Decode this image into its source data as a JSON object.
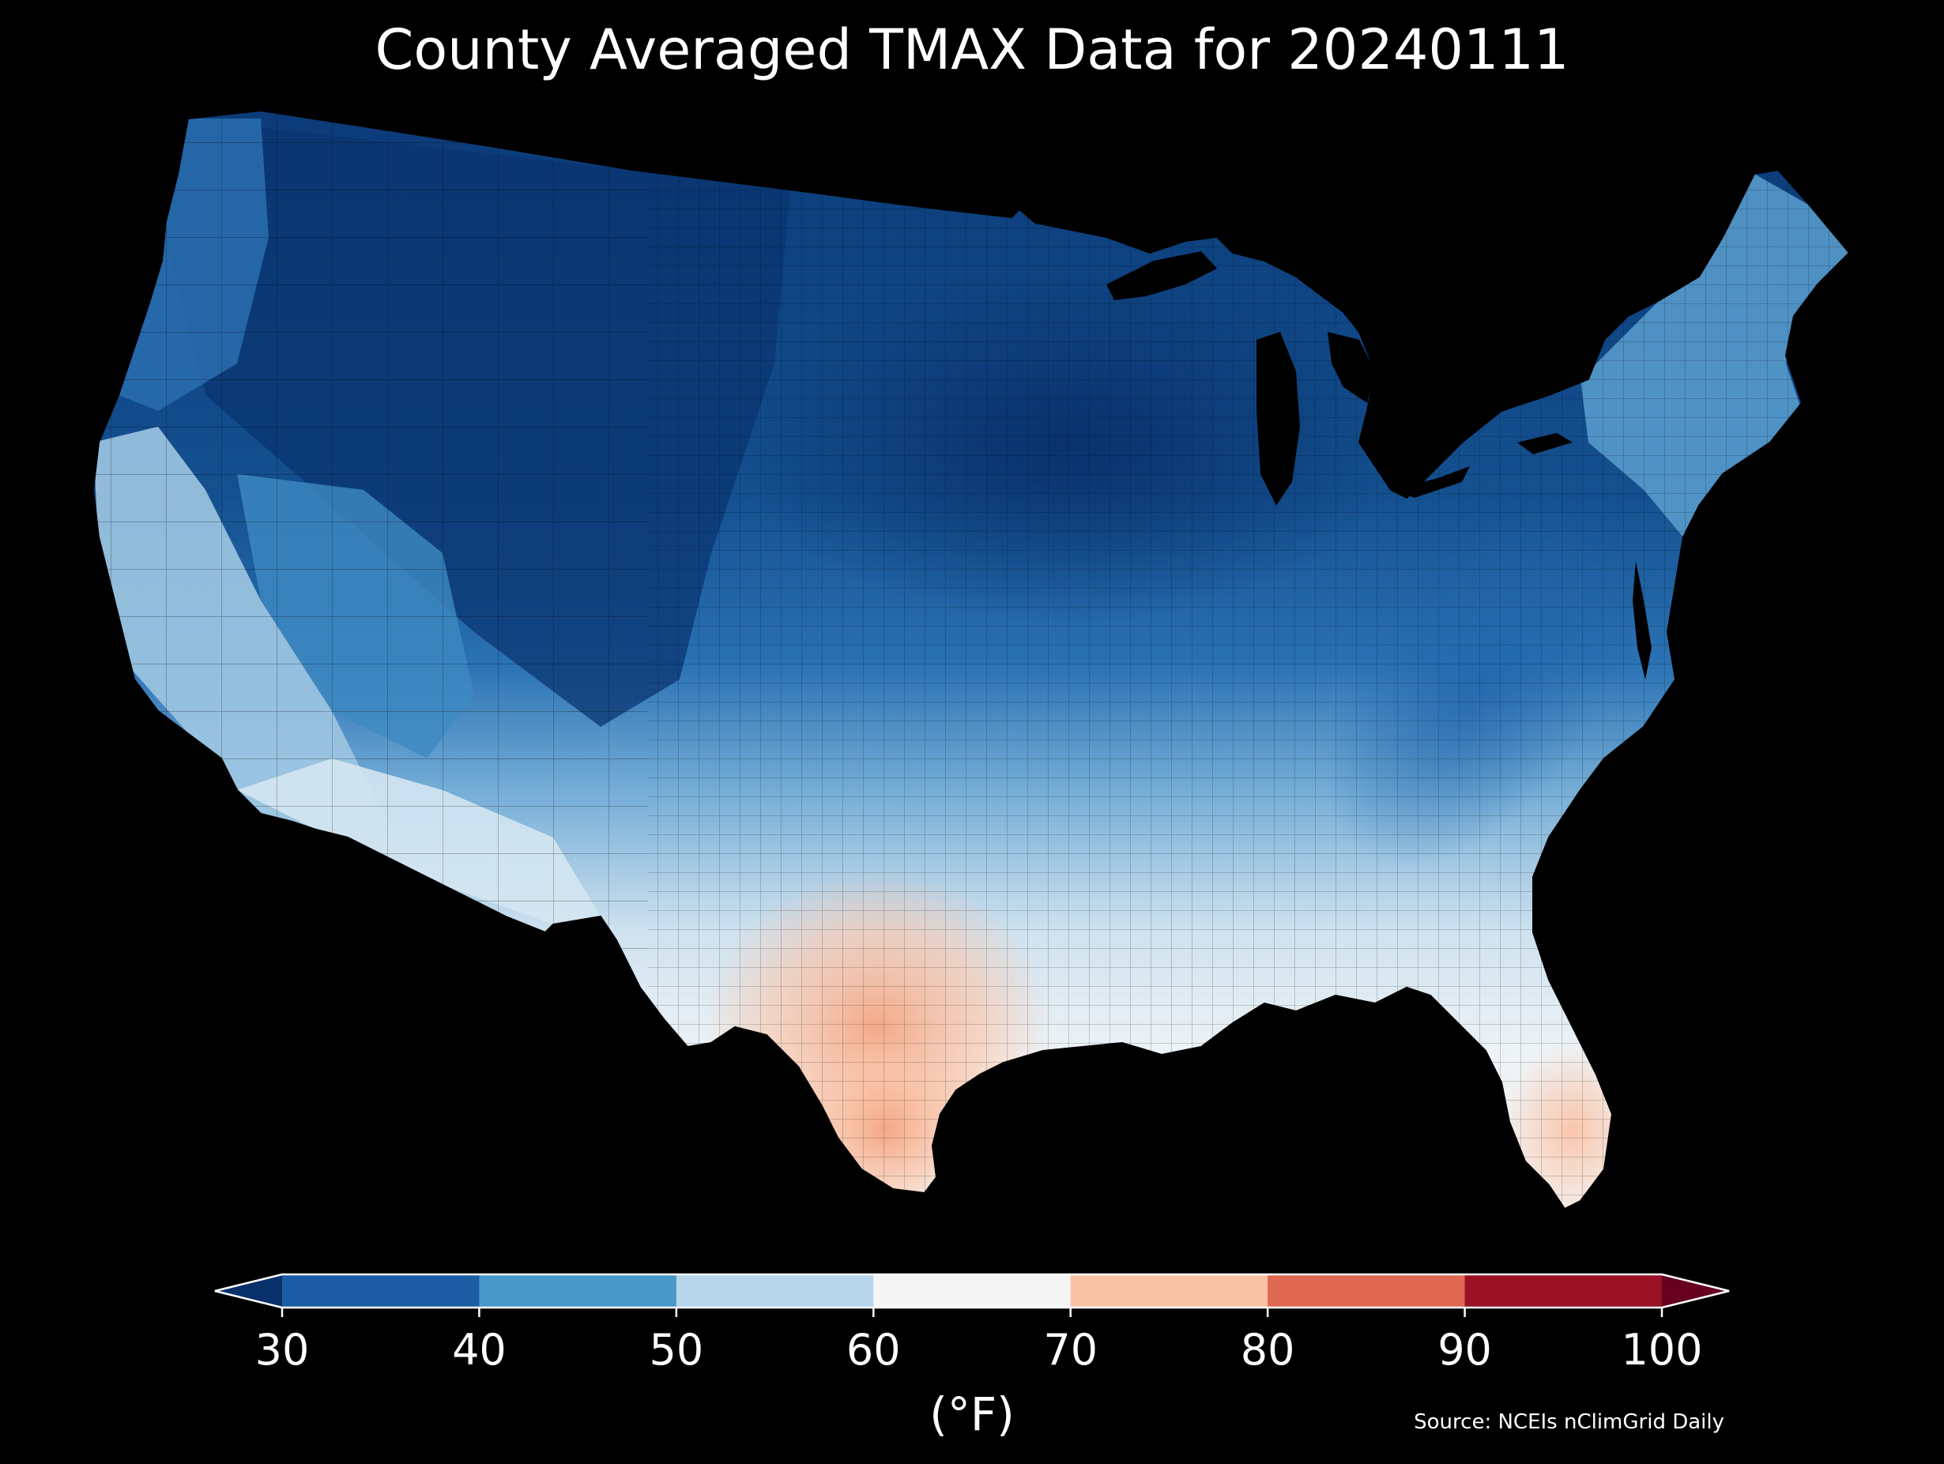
{
  "title": "County Averaged TMAX Data for 20240111",
  "colorbar": {
    "unit_label": "(°F)",
    "ticks": [
      "30",
      "40",
      "50",
      "60",
      "70",
      "80",
      "90",
      "100"
    ],
    "bins": [
      {
        "range": "below 30",
        "color": "#08306b"
      },
      {
        "range": "30-40",
        "color": "#1c5ca4"
      },
      {
        "range": "40-50",
        "color": "#4a98c9"
      },
      {
        "range": "50-60",
        "color": "#b6d5ea"
      },
      {
        "range": "60-70",
        "color": "#f5f5f5"
      },
      {
        "range": "70-80",
        "color": "#fac2a5"
      },
      {
        "range": "80-90",
        "color": "#df6852"
      },
      {
        "range": "90-100",
        "color": "#9b1126"
      },
      {
        "range": "above 100",
        "color": "#67001f"
      }
    ]
  },
  "source": "Source: NCEIs nClimGrid Daily",
  "map": {
    "background_color": "#000000",
    "regions_temperature_f": [
      {
        "region": "northern plains and upper midwest",
        "approx_tmax": 25
      },
      {
        "region": "northern rockies and interior northwest",
        "approx_tmax": 30
      },
      {
        "region": "pacific northwest coast",
        "approx_tmax": 38
      },
      {
        "region": "central plains and ohio valley",
        "approx_tmax": 42
      },
      {
        "region": "appalachians",
        "approx_tmax": 40
      },
      {
        "region": "northeast",
        "approx_tmax": 45
      },
      {
        "region": "california coast and desert southwest",
        "approx_tmax": 57
      },
      {
        "region": "southeast",
        "approx_tmax": 60
      },
      {
        "region": "texas and florida",
        "approx_tmax": 66
      },
      {
        "region": "south texas",
        "approx_tmax": 75
      }
    ]
  }
}
